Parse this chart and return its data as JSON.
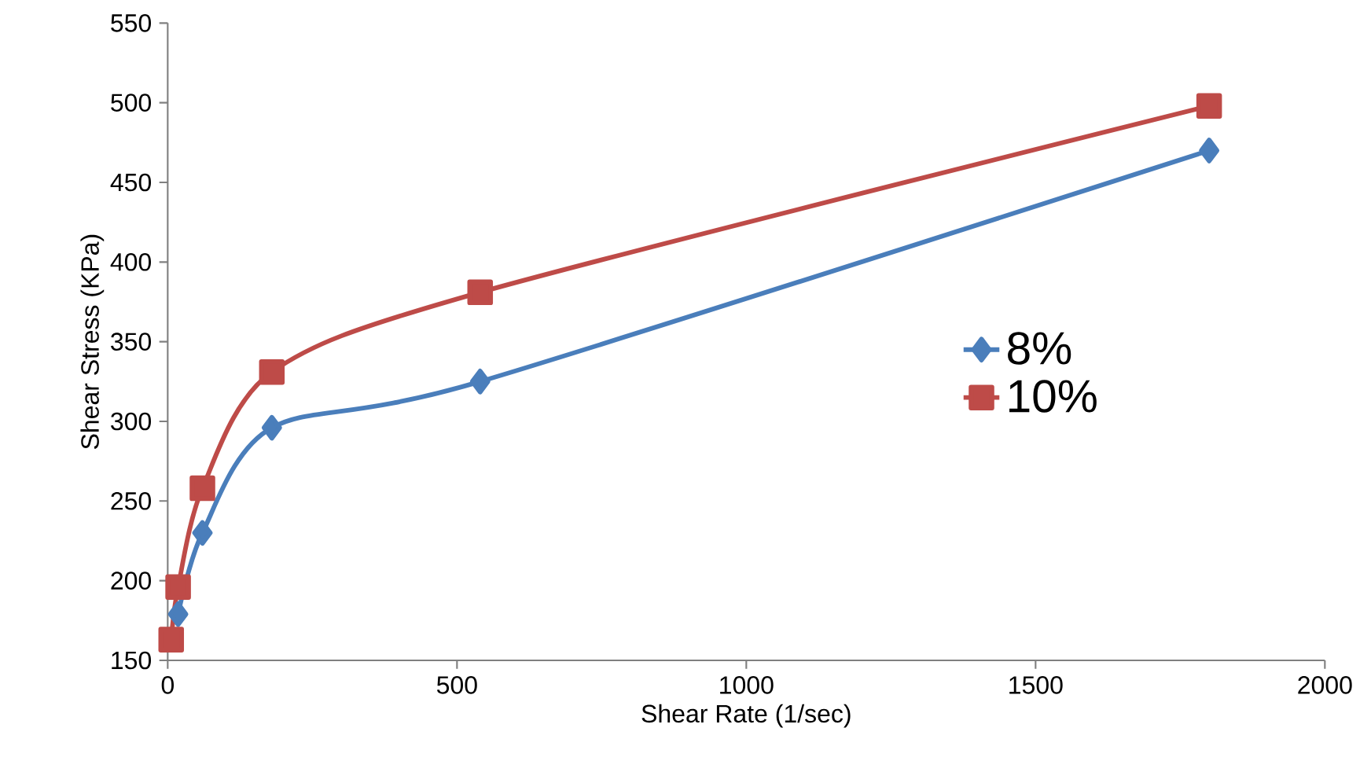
{
  "chart_data": {
    "type": "line",
    "xlabel": "Shear Rate (1/sec)",
    "ylabel": "Shear Stress (KPa)",
    "xlim": [
      0,
      2000
    ],
    "xticks": [
      0,
      500,
      1000,
      1500,
      2000
    ],
    "ylim": [
      150,
      550
    ],
    "yticks": [
      150,
      200,
      250,
      300,
      350,
      400,
      450,
      500,
      550
    ],
    "grid": false,
    "legend": "right",
    "series": [
      {
        "name": "8%",
        "color": "#4a7ebb",
        "marker": "diamond",
        "x": [
          18,
          60,
          180,
          540,
          1800
        ],
        "values": [
          179,
          230,
          296,
          325,
          470
        ]
      },
      {
        "name": "10%",
        "color": "#be4b48",
        "marker": "square",
        "x": [
          6,
          18,
          60,
          180,
          540,
          1800
        ],
        "values": [
          163,
          196,
          258,
          331,
          381,
          498
        ]
      }
    ]
  }
}
